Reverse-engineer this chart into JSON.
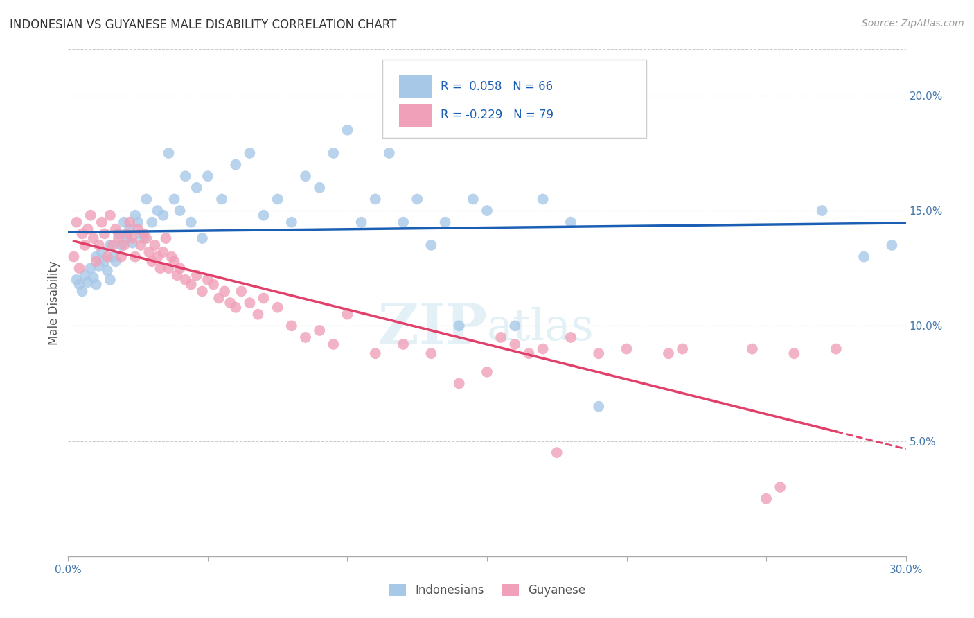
{
  "title": "INDONESIAN VS GUYANESE MALE DISABILITY CORRELATION CHART",
  "source": "Source: ZipAtlas.com",
  "ylabel": "Male Disability",
  "xlim": [
    0.0,
    0.3
  ],
  "ylim": [
    0.0,
    0.22
  ],
  "ytick_vals": [
    0.05,
    0.1,
    0.15,
    0.2
  ],
  "ytick_labels": [
    "5.0%",
    "10.0%",
    "15.0%",
    "20.0%"
  ],
  "r_indonesian": 0.058,
  "n_indonesian": 66,
  "r_guyanese": -0.229,
  "n_guyanese": 79,
  "color_indonesian": "#a8c8e8",
  "color_guyanese": "#f0a0b8",
  "line_color_indonesian": "#1a5fb4",
  "line_color_guyanese": "#e0406a",
  "watermark_zip": "ZIP",
  "watermark_atlas": "atlas",
  "legend_labels": [
    "Indonesians",
    "Guyanese"
  ],
  "indonesian_x": [
    0.003,
    0.004,
    0.005,
    0.006,
    0.007,
    0.008,
    0.009,
    0.01,
    0.01,
    0.011,
    0.012,
    0.013,
    0.014,
    0.015,
    0.015,
    0.016,
    0.017,
    0.018,
    0.019,
    0.02,
    0.021,
    0.022,
    0.023,
    0.024,
    0.025,
    0.026,
    0.027,
    0.028,
    0.03,
    0.032,
    0.034,
    0.036,
    0.038,
    0.04,
    0.042,
    0.044,
    0.046,
    0.048,
    0.05,
    0.055,
    0.06,
    0.065,
    0.07,
    0.075,
    0.08,
    0.085,
    0.09,
    0.095,
    0.1,
    0.105,
    0.11,
    0.115,
    0.12,
    0.125,
    0.13,
    0.135,
    0.14,
    0.145,
    0.15,
    0.16,
    0.17,
    0.18,
    0.19,
    0.27,
    0.285,
    0.295
  ],
  "indonesian_y": [
    0.12,
    0.118,
    0.115,
    0.122,
    0.119,
    0.125,
    0.121,
    0.13,
    0.118,
    0.126,
    0.132,
    0.128,
    0.124,
    0.135,
    0.12,
    0.13,
    0.128,
    0.14,
    0.135,
    0.145,
    0.138,
    0.142,
    0.136,
    0.148,
    0.145,
    0.14,
    0.138,
    0.155,
    0.145,
    0.15,
    0.148,
    0.175,
    0.155,
    0.15,
    0.165,
    0.145,
    0.16,
    0.138,
    0.165,
    0.155,
    0.17,
    0.175,
    0.148,
    0.155,
    0.145,
    0.165,
    0.16,
    0.175,
    0.185,
    0.145,
    0.155,
    0.175,
    0.145,
    0.155,
    0.135,
    0.145,
    0.1,
    0.155,
    0.15,
    0.1,
    0.155,
    0.145,
    0.065,
    0.15,
    0.13,
    0.135
  ],
  "guyanese_x": [
    0.002,
    0.003,
    0.004,
    0.005,
    0.006,
    0.007,
    0.008,
    0.009,
    0.01,
    0.011,
    0.012,
    0.013,
    0.014,
    0.015,
    0.016,
    0.017,
    0.018,
    0.019,
    0.02,
    0.021,
    0.022,
    0.023,
    0.024,
    0.025,
    0.026,
    0.027,
    0.028,
    0.029,
    0.03,
    0.031,
    0.032,
    0.033,
    0.034,
    0.035,
    0.036,
    0.037,
    0.038,
    0.039,
    0.04,
    0.042,
    0.044,
    0.046,
    0.048,
    0.05,
    0.052,
    0.054,
    0.056,
    0.058,
    0.06,
    0.062,
    0.065,
    0.068,
    0.07,
    0.075,
    0.08,
    0.085,
    0.09,
    0.095,
    0.1,
    0.11,
    0.12,
    0.13,
    0.14,
    0.15,
    0.155,
    0.16,
    0.165,
    0.17,
    0.175,
    0.18,
    0.19,
    0.2,
    0.215,
    0.22,
    0.245,
    0.25,
    0.255,
    0.26,
    0.275
  ],
  "guyanese_y": [
    0.13,
    0.145,
    0.125,
    0.14,
    0.135,
    0.142,
    0.148,
    0.138,
    0.128,
    0.135,
    0.145,
    0.14,
    0.13,
    0.148,
    0.135,
    0.142,
    0.138,
    0.13,
    0.135,
    0.14,
    0.145,
    0.138,
    0.13,
    0.142,
    0.135,
    0.14,
    0.138,
    0.132,
    0.128,
    0.135,
    0.13,
    0.125,
    0.132,
    0.138,
    0.125,
    0.13,
    0.128,
    0.122,
    0.125,
    0.12,
    0.118,
    0.122,
    0.115,
    0.12,
    0.118,
    0.112,
    0.115,
    0.11,
    0.108,
    0.115,
    0.11,
    0.105,
    0.112,
    0.108,
    0.1,
    0.095,
    0.098,
    0.092,
    0.105,
    0.088,
    0.092,
    0.088,
    0.075,
    0.08,
    0.095,
    0.092,
    0.088,
    0.09,
    0.045,
    0.095,
    0.088,
    0.09,
    0.088,
    0.09,
    0.09,
    0.025,
    0.03,
    0.088,
    0.09
  ]
}
